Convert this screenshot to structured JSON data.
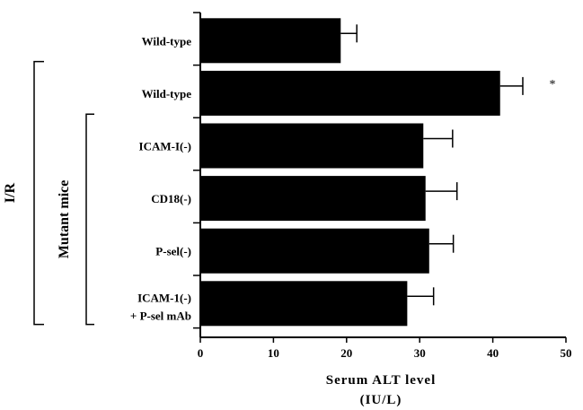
{
  "chart_data": {
    "type": "bar",
    "orientation": "horizontal",
    "categories": [
      "Wild-type",
      "Wild-type",
      "ICAM-I(-)",
      "CD18(-)",
      "P-sel(-)",
      "ICAM-1(-)"
    ],
    "category_sublabels": [
      "",
      "",
      "",
      "",
      "",
      "+ P-sel mAb"
    ],
    "values": [
      19.2,
      41,
      30.5,
      30.8,
      31.3,
      28.3
    ],
    "errors": [
      2.2,
      3.1,
      4.0,
      4.3,
      3.3,
      3.6
    ],
    "annotations": [
      "",
      "*",
      "",
      "",
      "",
      ""
    ],
    "xlabel_line1": "Serum ALT level",
    "xlabel_line2": "(IU/L)",
    "xlim": [
      0,
      50
    ],
    "xticks": [
      "0",
      "10",
      "20",
      "30",
      "40",
      "50"
    ],
    "groups": [
      {
        "label": "I/R",
        "start": 1,
        "end": 5
      },
      {
        "label": "Mutant mice",
        "start": 2,
        "end": 5
      }
    ],
    "bar_color": "#000000",
    "grid": false
  }
}
